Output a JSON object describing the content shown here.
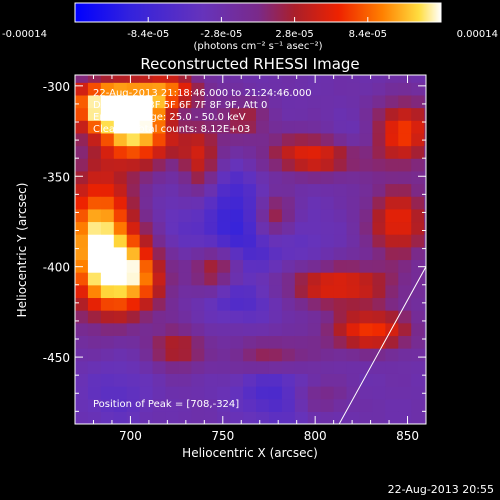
{
  "chart_data": {
    "type": "heatmap",
    "title": "Reconstructed RHESSI Image",
    "xlabel": "Heliocentric X (arcsec)",
    "ylabel": "Heliocentric Y (arcsec)",
    "xlim": [
      670,
      860
    ],
    "ylim": [
      -487,
      -294
    ],
    "x_ticks": [
      700,
      750,
      800,
      850
    ],
    "y_ticks": [
      -300,
      -350,
      -400,
      -450
    ],
    "colorbar": {
      "ticks": [
        "-0.00014",
        "-8.4e-05",
        "-2.8e-05",
        "2.8e-05",
        "8.4e-05",
        "0.00014"
      ],
      "min": -0.00014,
      "max": 0.00014,
      "units": "(photons cm⁻² s⁻¹ asec⁻²)"
    },
    "annotations": [
      "22-Aug-2013 21:18:46.000 to 21:24:46.000",
      "Detectors: 3F 5F 6F 7F 8F 9F, Att 0",
      "Energy Range: 25.0 - 50.0 keV",
      "Clean    Total counts: 8.12E+03"
    ],
    "peak_label": "Position of Peak = [708,-324]",
    "peak": [
      708,
      -324
    ],
    "limb_line": {
      "x": [
        813,
        860
      ],
      "y": [
        -487,
        -400
      ]
    },
    "sources": [
      {
        "x": 705,
        "y": -322,
        "sx": 15,
        "sy": 14,
        "a": 1.0
      },
      {
        "x": 685,
        "y": -310,
        "sx": 14,
        "sy": 10,
        "a": 0.85
      },
      {
        "x": 720,
        "y": -302,
        "sx": 12,
        "sy": 8,
        "a": 0.55
      },
      {
        "x": 683,
        "y": -385,
        "sx": 14,
        "sy": 26,
        "a": 0.95
      },
      {
        "x": 700,
        "y": -405,
        "sx": 14,
        "sy": 14,
        "a": 0.75
      },
      {
        "x": 738,
        "y": -342,
        "sx": 8,
        "sy": 20,
        "a": 0.5
      },
      {
        "x": 745,
        "y": -400,
        "sx": 9,
        "sy": 9,
        "a": 0.5
      },
      {
        "x": 725,
        "y": -445,
        "sx": 10,
        "sy": 8,
        "a": 0.4
      },
      {
        "x": 800,
        "y": -338,
        "sx": 20,
        "sy": 8,
        "a": 0.55
      },
      {
        "x": 848,
        "y": -325,
        "sx": 12,
        "sy": 12,
        "a": 0.6
      },
      {
        "x": 812,
        "y": -410,
        "sx": 22,
        "sy": 8,
        "a": 0.55
      },
      {
        "x": 845,
        "y": -375,
        "sx": 12,
        "sy": 14,
        "a": 0.55
      },
      {
        "x": 830,
        "y": -435,
        "sx": 16,
        "sy": 8,
        "a": 0.6
      },
      {
        "x": 778,
        "y": -372,
        "sx": 8,
        "sy": 10,
        "a": 0.5
      },
      {
        "x": 780,
        "y": -450,
        "sx": 18,
        "sy": 8,
        "a": 0.45
      },
      {
        "x": 800,
        "y": -470,
        "sx": 12,
        "sy": 8,
        "a": 0.4
      },
      {
        "x": 760,
        "y": -318,
        "sx": 10,
        "sy": 8,
        "a": 0.35
      }
    ],
    "negatives": [
      {
        "x": 785,
        "y": -465,
        "sx": 18,
        "sy": 14,
        "a": 0.75
      },
      {
        "x": 760,
        "y": -385,
        "sx": 26,
        "sy": 14,
        "a": 0.6
      },
      {
        "x": 750,
        "y": -360,
        "sx": 18,
        "sy": 14,
        "a": 0.55
      },
      {
        "x": 730,
        "y": -318,
        "sx": 14,
        "sy": 8,
        "a": 0.45
      },
      {
        "x": 692,
        "y": -470,
        "sx": 14,
        "sy": 14,
        "a": 0.3
      },
      {
        "x": 760,
        "y": -418,
        "sx": 14,
        "sy": 8,
        "a": 0.45
      },
      {
        "x": 820,
        "y": -330,
        "sx": 10,
        "sy": 8,
        "a": 0.35
      }
    ]
  },
  "footer_date": "22-Aug-2013 20:55"
}
